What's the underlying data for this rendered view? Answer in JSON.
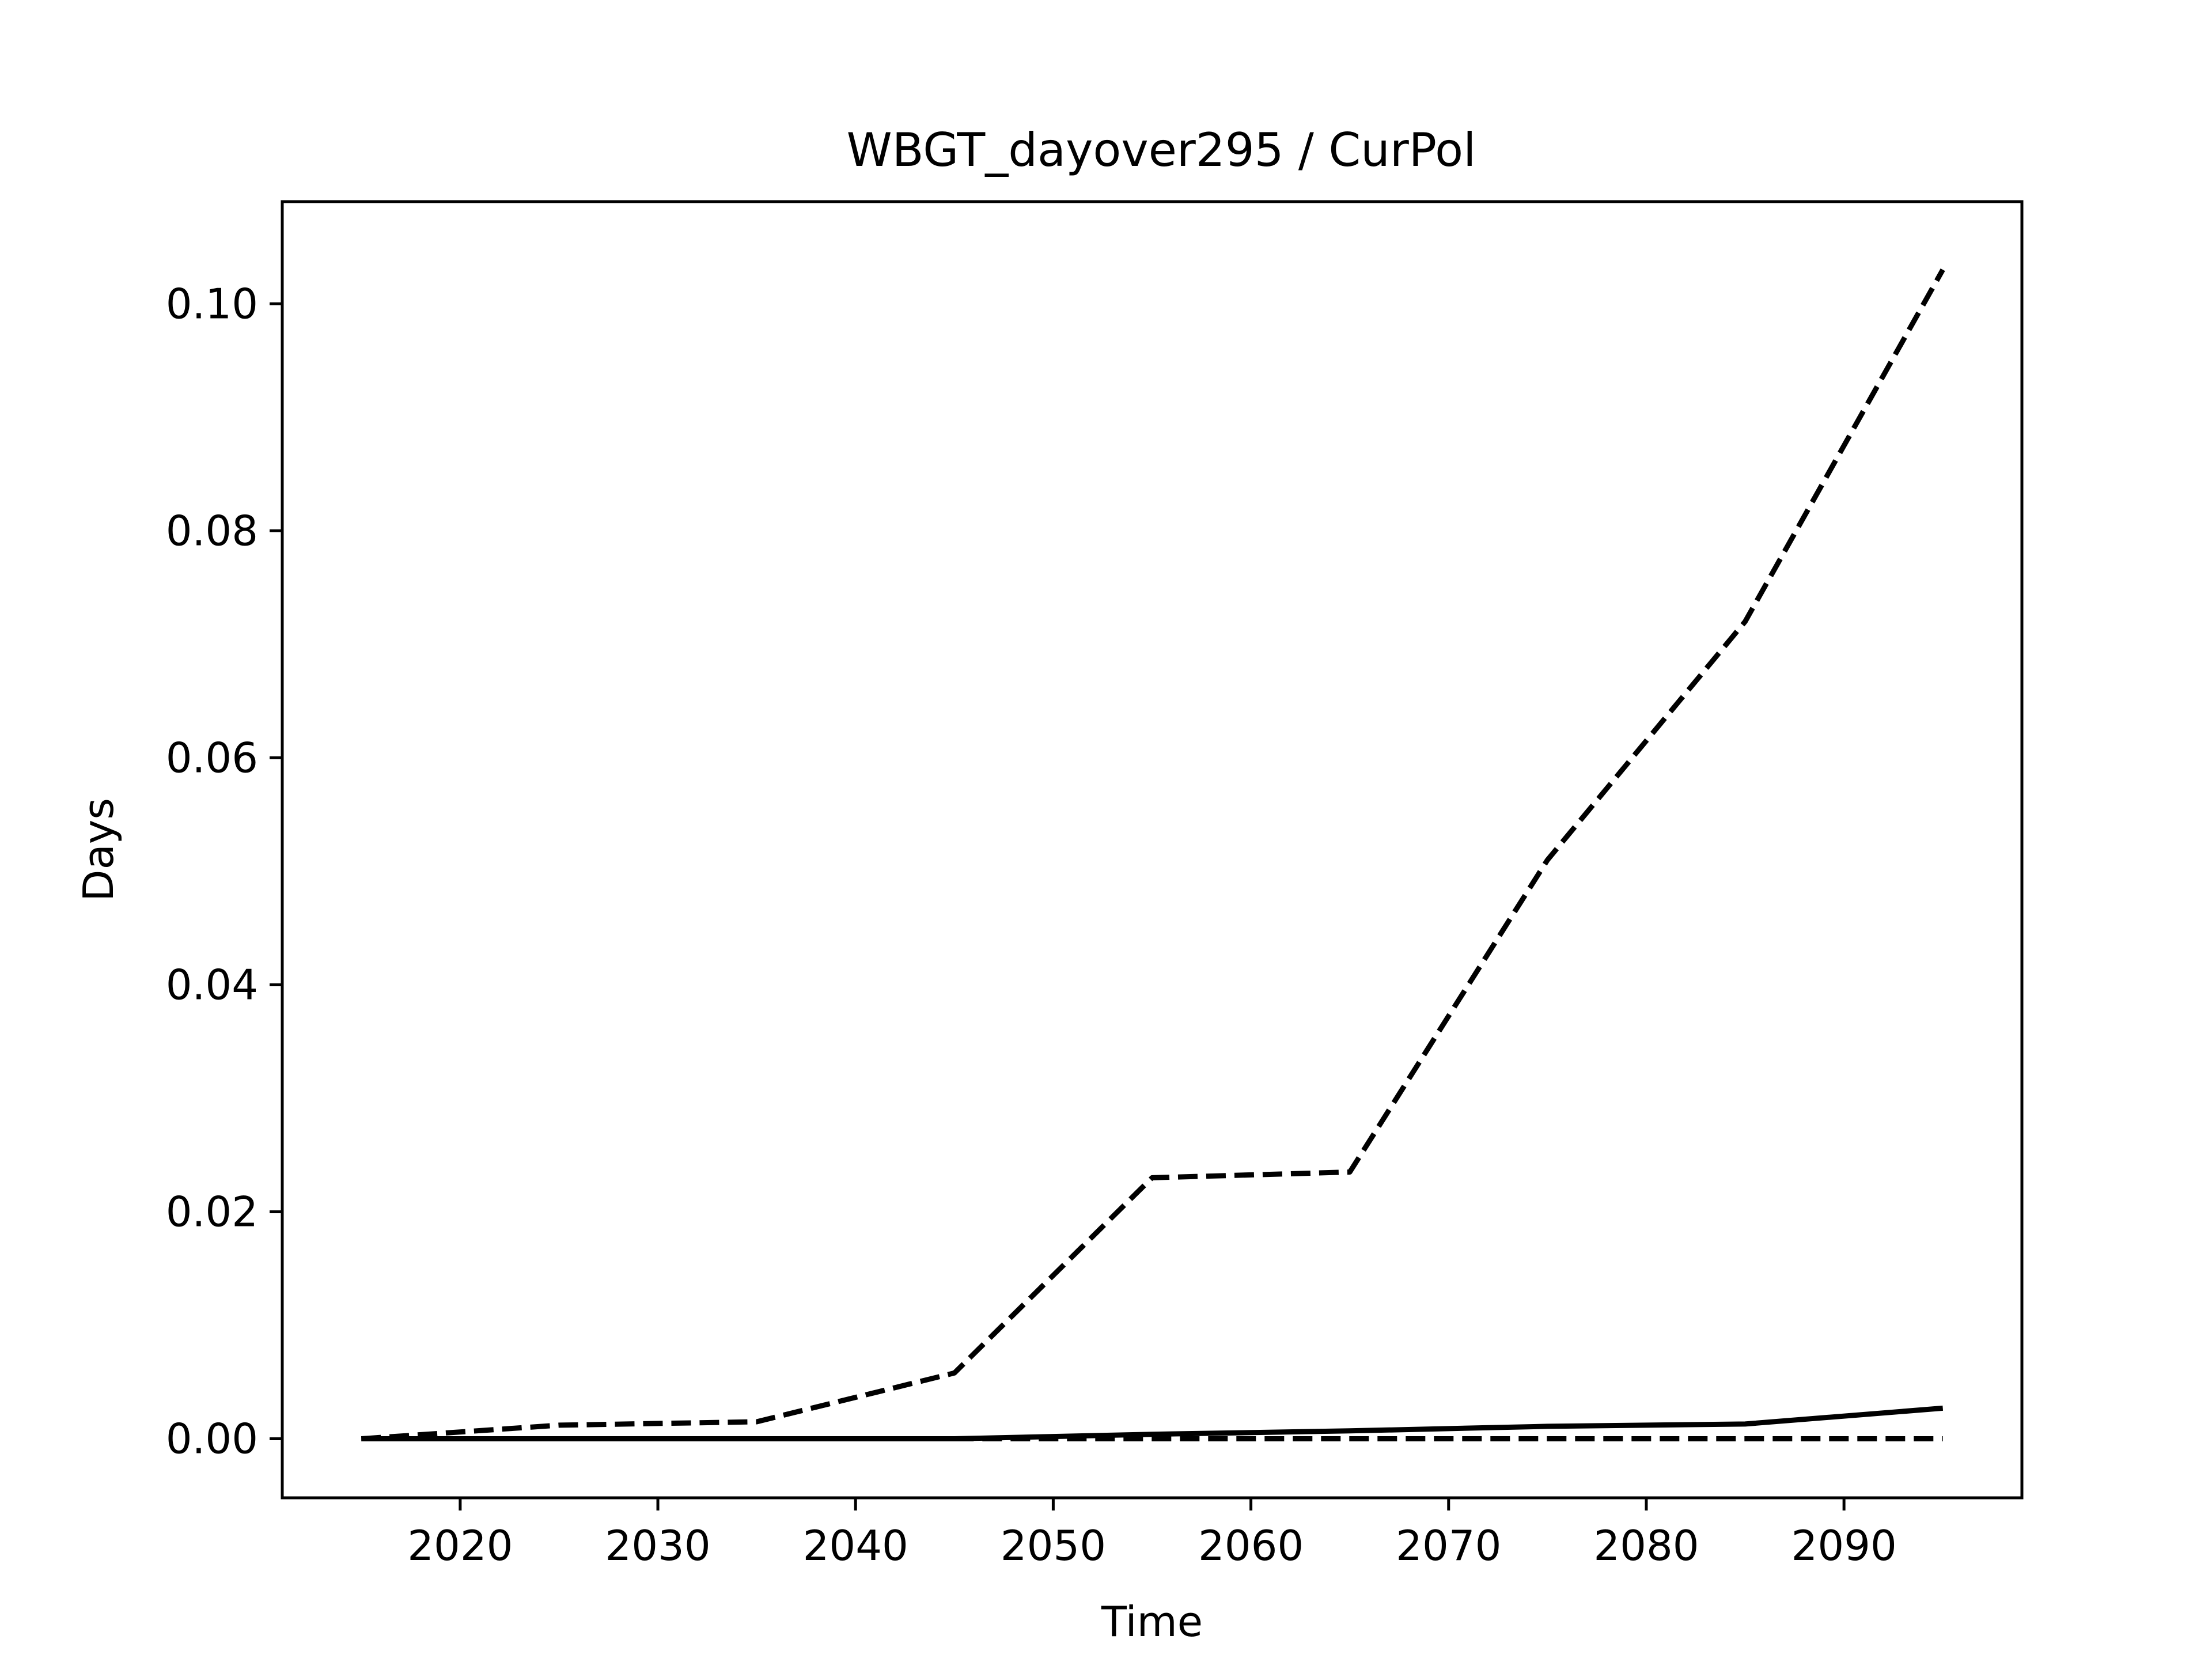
{
  "chart_data": {
    "type": "line",
    "title": "WBGT_dayover295 / CurPol",
    "xlabel": "Time",
    "ylabel": "Days",
    "xlim": [
      2011,
      2099
    ],
    "ylim": [
      -0.0052,
      0.109
    ],
    "xticks": [
      2020,
      2030,
      2040,
      2050,
      2060,
      2070,
      2080,
      2090
    ],
    "yticks": [
      0.0,
      0.02,
      0.04,
      0.06,
      0.08,
      0.1
    ],
    "ytick_labels": [
      "0.00",
      "0.02",
      "0.04",
      "0.06",
      "0.08",
      "0.10"
    ],
    "grid": false,
    "legend": "none",
    "x": [
      2015,
      2025,
      2035,
      2045,
      2055,
      2065,
      2075,
      2085,
      2095
    ],
    "series": [
      {
        "style": "dashed",
        "color": "#000000",
        "values": [
          0.0,
          0.0012,
          0.0015,
          0.0058,
          0.023,
          0.0235,
          0.051,
          0.072,
          0.103
        ]
      },
      {
        "style": "solid",
        "color": "#000000",
        "values": [
          0.0,
          0.0,
          0.0,
          0.0,
          0.0004,
          0.0007,
          0.0011,
          0.0013,
          0.0027
        ]
      },
      {
        "style": "dashed",
        "color": "#000000",
        "values": [
          0.0,
          0.0,
          0.0,
          0.0,
          0.0,
          0.0,
          0.0,
          0.0,
          0.0
        ]
      }
    ]
  }
}
